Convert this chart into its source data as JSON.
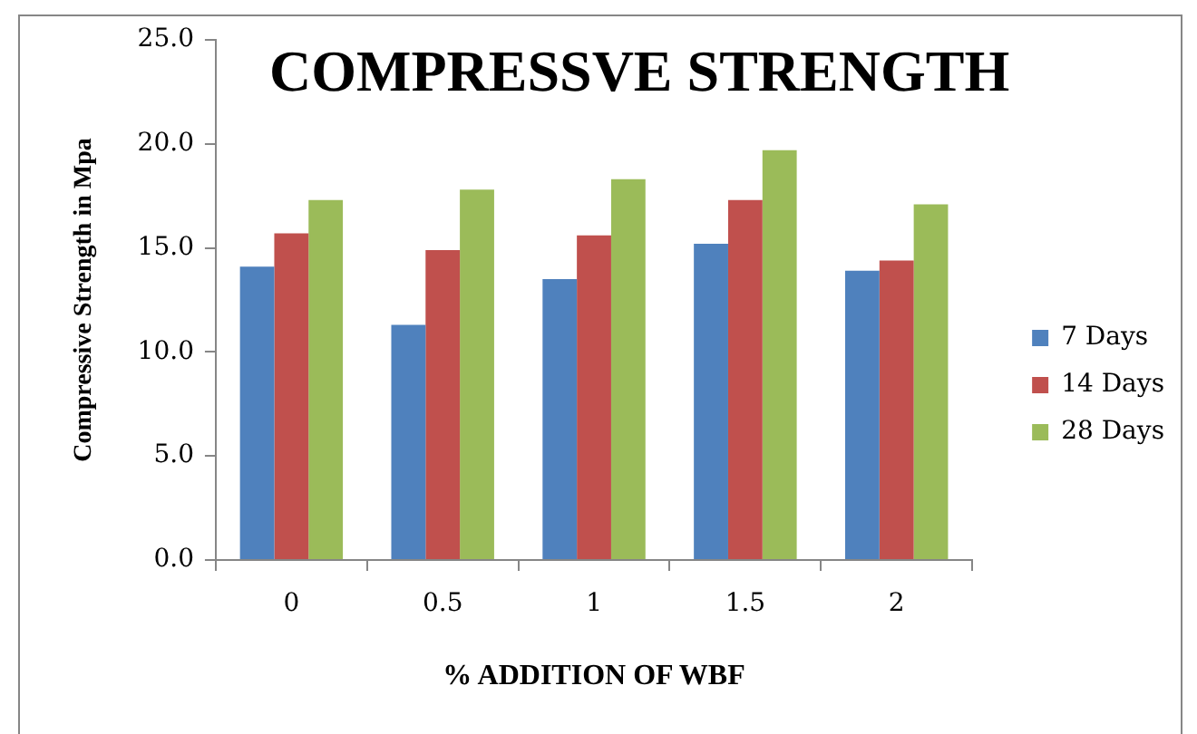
{
  "chart_data": {
    "type": "bar",
    "title": "COMPRESSVE STRENGTH",
    "xlabel": "% ADDITION OF WBF",
    "ylabel": "Compressive Strength in Mpa",
    "categories": [
      "0",
      "0.5",
      "1",
      "1.5",
      "2"
    ],
    "series": [
      {
        "name": "7 Days",
        "color": "#4f81bd",
        "values": [
          14.1,
          11.3,
          13.5,
          15.2,
          13.9
        ]
      },
      {
        "name": "14 Days",
        "color": "#c0504d",
        "values": [
          15.7,
          14.9,
          15.6,
          17.3,
          14.4
        ]
      },
      {
        "name": "28 Days",
        "color": "#9bbb59",
        "values": [
          17.3,
          17.8,
          18.3,
          19.7,
          17.1
        ]
      }
    ],
    "ylim": [
      0,
      25
    ],
    "yticks": [
      {
        "value": 0,
        "label": "0.0"
      },
      {
        "value": 5,
        "label": "5.0"
      },
      {
        "value": 10,
        "label": "10.0"
      },
      {
        "value": 15,
        "label": "15.0"
      },
      {
        "value": 20,
        "label": "20.0"
      },
      {
        "value": 25,
        "label": "25.0"
      }
    ],
    "grid": false,
    "legend": "right"
  }
}
